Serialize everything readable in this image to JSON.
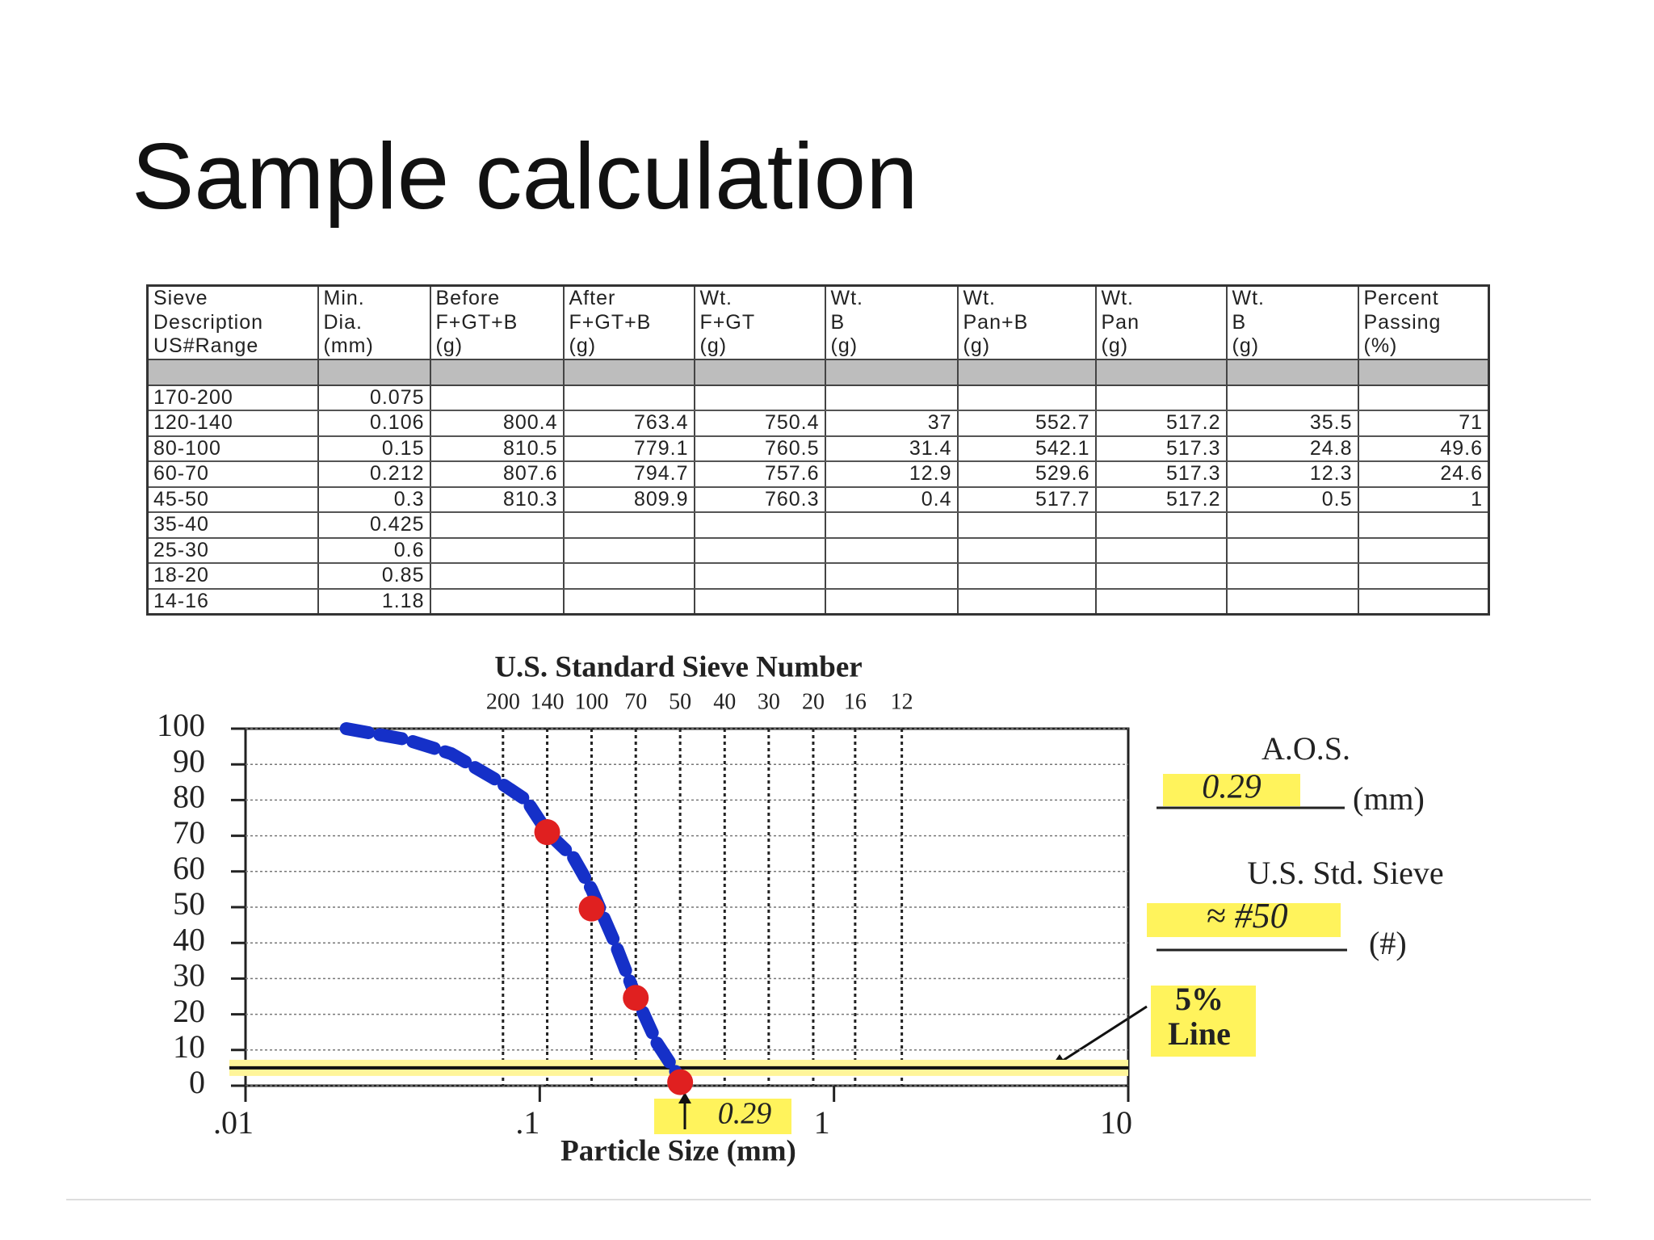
{
  "title": "Sample calculation",
  "table": {
    "header": [
      [
        "Sieve",
        "Description",
        "US#Range"
      ],
      [
        "Min.",
        "Dia.",
        "(mm)"
      ],
      [
        "Before",
        "F+GT+B",
        "(g)"
      ],
      [
        "After",
        "F+GT+B",
        "(g)"
      ],
      [
        "Wt.",
        "F+GT",
        "(g)"
      ],
      [
        "Wt.",
        "B",
        "(g)"
      ],
      [
        "Wt.",
        "Pan+B",
        "(g)"
      ],
      [
        "Wt.",
        "Pan",
        "(g)"
      ],
      [
        "Wt.",
        "B",
        "(g)"
      ],
      [
        "Percent",
        "Passing",
        "(%)"
      ]
    ],
    "rows": [
      [
        "170-200",
        "0.075"
      ],
      [
        "120-140",
        "0.106",
        "800.4",
        "763.4",
        "750.4",
        "37",
        "552.7",
        "517.2",
        "35.5",
        "71"
      ],
      [
        "80-100",
        "0.15",
        "810.5",
        "779.1",
        "760.5",
        "31.4",
        "542.1",
        "517.3",
        "24.8",
        "49.6"
      ],
      [
        "60-70",
        "0.212",
        "807.6",
        "794.7",
        "757.6",
        "12.9",
        "529.6",
        "517.3",
        "12.3",
        "24.6"
      ],
      [
        "45-50",
        "0.3",
        "810.3",
        "809.9",
        "760.3",
        "0.4",
        "517.7",
        "517.2",
        "0.5",
        "1"
      ],
      [
        "35-40",
        "0.425"
      ],
      [
        "25-30",
        "0.6"
      ],
      [
        "18-20",
        "0.85"
      ],
      [
        "14-16",
        "1.18"
      ]
    ]
  },
  "chart_data": {
    "type": "scatter",
    "title": "U.S. Standard Sieve Number",
    "x_label": "Particle Size (mm)",
    "x_log": true,
    "xlim": [
      0.01,
      10
    ],
    "xticks": [
      {
        "value": 0.01,
        "label": ".01"
      },
      {
        "value": 0.1,
        "label": ".1"
      },
      1,
      10
    ],
    "top_ticks": [
      {
        "value": 0.075,
        "label": "200"
      },
      {
        "value": 0.106,
        "label": "140"
      },
      {
        "value": 0.15,
        "label": "100"
      },
      {
        "value": 0.212,
        "label": "70"
      },
      {
        "value": 0.3,
        "label": "50"
      },
      {
        "value": 0.425,
        "label": "40"
      },
      {
        "value": 0.6,
        "label": "30"
      },
      {
        "value": 0.85,
        "label": "20"
      },
      {
        "value": 1.18,
        "label": "16"
      },
      {
        "value": 1.7,
        "label": "12"
      }
    ],
    "ylim": [
      0,
      100
    ],
    "yticks": [
      0,
      10,
      20,
      30,
      40,
      50,
      60,
      70,
      80,
      90,
      100
    ],
    "grid": true,
    "curve": {
      "color": "#1530c8",
      "x": [
        0.022,
        0.035,
        0.05,
        0.07,
        0.09,
        0.106,
        0.13,
        0.15,
        0.18,
        0.212,
        0.25,
        0.3
      ],
      "values": [
        100,
        97,
        93,
        86,
        80,
        71,
        64,
        55,
        40,
        25,
        12,
        2
      ]
    },
    "series": [
      {
        "color": "#e02020",
        "x": [
          0.106,
          0.15,
          0.212,
          0.3
        ],
        "values": [
          71,
          49.6,
          24.6,
          1
        ]
      }
    ],
    "five_percent_line": 5,
    "annotations": {
      "aos": "A.O.S.",
      "aos_value": "0.29",
      "aos_unit": "(mm)",
      "sieve": "U.S. Std. Sieve",
      "sieve_value": "≈ #50",
      "sieve_unit": "(#)",
      "line_pct": "5%",
      "line_word": "Line",
      "arrow_value": "0.29"
    }
  }
}
